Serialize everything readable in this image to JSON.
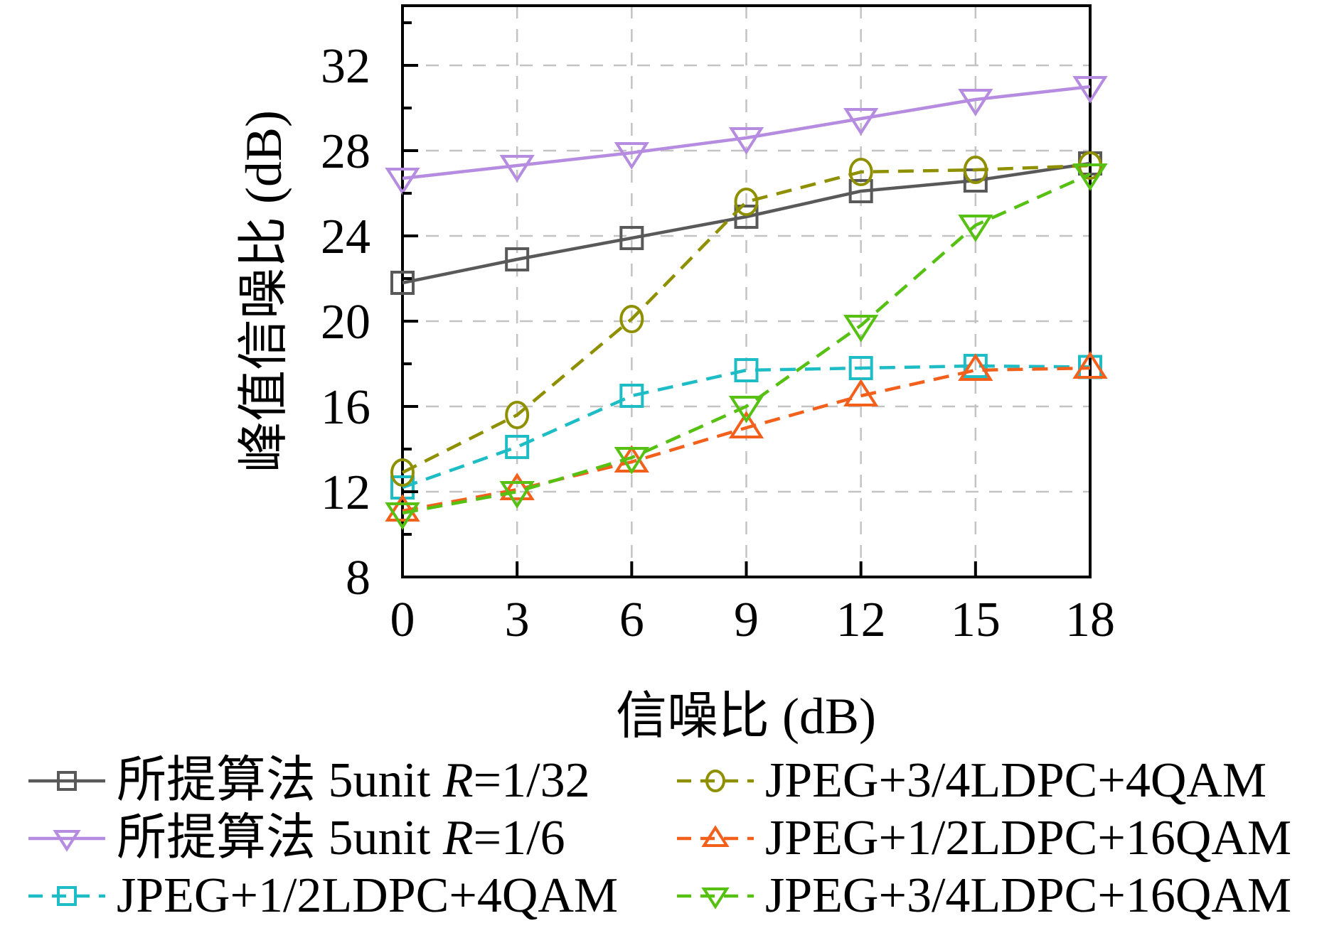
{
  "chart_data": {
    "type": "line",
    "title": "",
    "xlabel": "信噪比 (dB)",
    "ylabel": "峰值信噪比 (dB)",
    "x": [
      0,
      3,
      6,
      9,
      12,
      15,
      18
    ],
    "x_ticks": [
      "0",
      "3",
      "6",
      "9",
      "12",
      "15",
      "18"
    ],
    "x_tick_values": [
      0,
      3,
      6,
      9,
      12,
      15,
      18
    ],
    "y_ticks": [
      "8",
      "12",
      "16",
      "20",
      "24",
      "28",
      "32"
    ],
    "y_tick_values": [
      8,
      12,
      16,
      20,
      24,
      28,
      32
    ],
    "y_minor_tick_values": [
      10,
      14,
      18,
      22,
      26,
      30,
      34
    ],
    "x_gridline_values": [
      3,
      6,
      9,
      12,
      15
    ],
    "y_gridline_values": [
      12,
      16,
      20,
      24,
      28,
      32
    ],
    "xlim": [
      0,
      18
    ],
    "ylim": [
      8,
      34.8
    ],
    "grid": "dashed",
    "grid_color": "#c3c3c3",
    "axis_color": "#000000",
    "legend_position": "below",
    "series": [
      {
        "id": "proposed-r1-32",
        "label": "所提算法 5unit R=1/32",
        "label_runs": [
          {
            "t": "所提算法 5unit ",
            "i": false
          },
          {
            "t": "R",
            "i": true
          },
          {
            "t": "=1/32",
            "i": false
          }
        ],
        "color": "#595959",
        "marker": "square",
        "line": "solid",
        "values": [
          21.8,
          22.9,
          23.9,
          24.9,
          26.1,
          26.6,
          27.4
        ]
      },
      {
        "id": "proposed-r1-6",
        "label": "所提算法 5unit R=1/6",
        "label_runs": [
          {
            "t": "所提算法 5unit ",
            "i": false
          },
          {
            "t": "R",
            "i": true
          },
          {
            "t": "=1/6",
            "i": false
          }
        ],
        "color": "#b58ce0",
        "marker": "triangle-down",
        "line": "solid",
        "values": [
          26.7,
          27.3,
          27.9,
          28.6,
          29.5,
          30.4,
          31.0
        ]
      },
      {
        "id": "jpeg-1-2ldpc-4qam",
        "label": "JPEG+1/2LDPC+4QAM",
        "label_runs": [
          {
            "t": "JPEG+1/2LDPC+4QAM",
            "i": false
          }
        ],
        "color": "#1ebdc6",
        "marker": "square",
        "line": "dashed",
        "values": [
          12.2,
          14.1,
          16.5,
          17.7,
          17.8,
          17.9,
          17.85
        ]
      },
      {
        "id": "jpeg-3-4ldpc-4qam",
        "label": "JPEG+3/4LDPC+4QAM",
        "label_runs": [
          {
            "t": "JPEG+3/4LDPC+4QAM",
            "i": false
          }
        ],
        "color": "#8e9000",
        "marker": "circle",
        "line": "dashed",
        "values": [
          12.9,
          15.6,
          20.1,
          25.6,
          27.0,
          27.1,
          27.3
        ]
      },
      {
        "id": "jpeg-1-2ldpc-16qam",
        "label": "JPEG+1/2LDPC+16QAM",
        "label_runs": [
          {
            "t": "JPEG+1/2LDPC+16QAM",
            "i": false
          }
        ],
        "color": "#f2601c",
        "marker": "triangle-up",
        "line": "dashed",
        "values": [
          11.1,
          12.1,
          13.4,
          15.0,
          16.5,
          17.7,
          17.8
        ]
      },
      {
        "id": "jpeg-3-4ldpc-16qam",
        "label": "JPEG+3/4LDPC+16QAM",
        "label_runs": [
          {
            "t": "JPEG+3/4LDPC+16QAM",
            "i": false
          }
        ],
        "color": "#57c113",
        "marker": "triangle-down",
        "line": "dashed",
        "values": [
          11.0,
          12.0,
          13.6,
          16.0,
          19.8,
          24.5,
          26.9
        ]
      }
    ]
  }
}
